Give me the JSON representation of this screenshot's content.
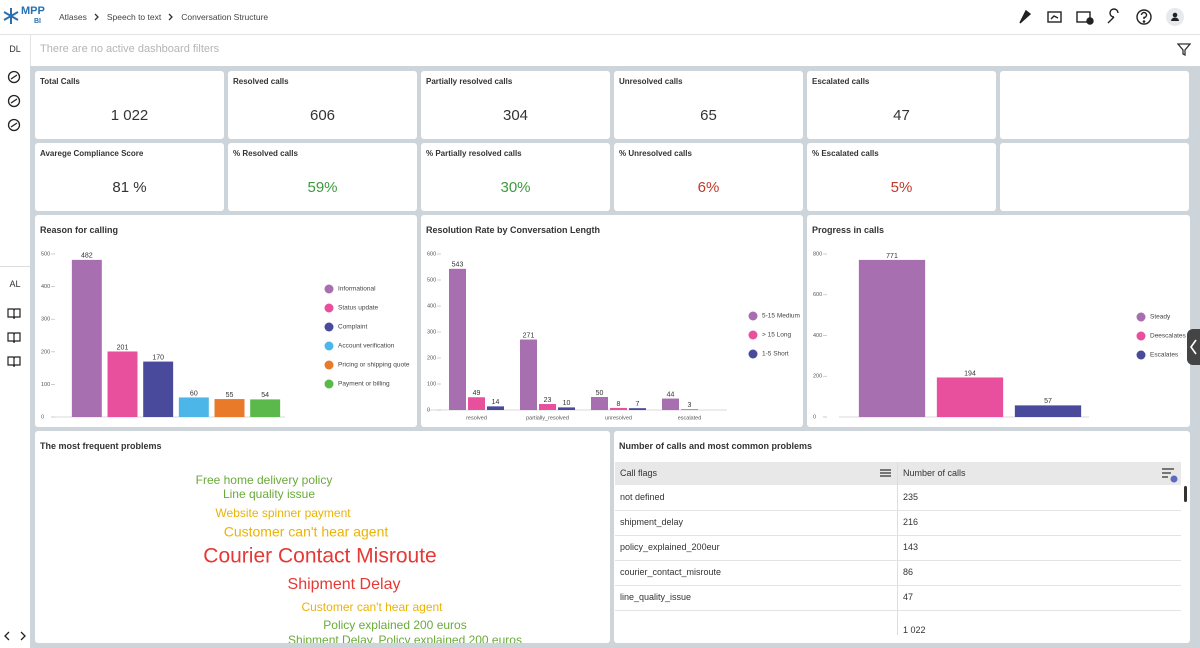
{
  "header": {
    "logo": "MPP",
    "logo_sub": "BI",
    "breadcrumbs": [
      "Atlases",
      "Speech to text",
      "Conversation Structure"
    ]
  },
  "sidebar": {
    "top_label": "DL",
    "bottom_label": "AL"
  },
  "filter_bar": {
    "text": "There are no active dashboard filters"
  },
  "kpis": [
    {
      "title": "Total Calls",
      "value": "1 022",
      "color": "#333333"
    },
    {
      "title": "Resolved calls",
      "value": "606",
      "color": "#333333"
    },
    {
      "title": "Partially resolved calls",
      "value": "304",
      "color": "#333333"
    },
    {
      "title": "Unresolved calls",
      "value": "65",
      "color": "#333333"
    },
    {
      "title": "Escalated calls",
      "value": "47",
      "color": "#333333"
    },
    {
      "title": "Avarege Compliance Score",
      "value": "81 %",
      "color": "#333333"
    },
    {
      "title": "% Resolved calls",
      "value": "59%",
      "color": "#3d9a3d"
    },
    {
      "title": "% Partially resolved calls",
      "value": "30%",
      "color": "#3d9a3d"
    },
    {
      "title": "% Unresolved calls",
      "value": "6%",
      "color": "#c0392b"
    },
    {
      "title": "% Escalated calls",
      "value": "5%",
      "color": "#c0392b"
    }
  ],
  "chart_data": [
    {
      "type": "bar",
      "title": "Reason for calling",
      "categories": [
        "Informational",
        "Status update",
        "Complaint",
        "Account verification",
        "Pricing or shipping quote",
        "Payment or billing"
      ],
      "values": [
        482,
        201,
        170,
        60,
        55,
        54
      ],
      "colors": [
        "#a86fb0",
        "#e84f9c",
        "#4a4a9c",
        "#4db6e8",
        "#e87a2a",
        "#5bb84a"
      ],
      "ylim": [
        0,
        500
      ],
      "yticks": [
        0,
        100,
        200,
        300,
        400,
        500
      ],
      "legend": "right"
    },
    {
      "type": "grouped_bar",
      "title": "Resolution Rate by Conversation Length",
      "categories": [
        "resolved",
        "partially_resolved",
        "unresolved",
        "escalated"
      ],
      "series": [
        {
          "name": "5-15 Medium",
          "color": "#a86fb0",
          "values": [
            543,
            271,
            50,
            44
          ]
        },
        {
          "name": "> 15 Long",
          "color": "#e84f9c",
          "values": [
            49,
            23,
            8,
            3
          ]
        },
        {
          "name": "1-5 Short",
          "color": "#4a4a9c",
          "values": [
            14,
            10,
            7,
            null
          ]
        }
      ],
      "ylim": [
        0,
        600
      ],
      "yticks": [
        0,
        100,
        200,
        300,
        400,
        500,
        600
      ],
      "legend": "right"
    },
    {
      "type": "bar",
      "title": "Progress in calls",
      "categories": [
        "Steady",
        "Deescalates",
        "Escalates"
      ],
      "values": [
        771,
        194,
        57
      ],
      "colors": [
        "#a86fb0",
        "#e84f9c",
        "#4a4a9c"
      ],
      "ylim": [
        0,
        800
      ],
      "yticks": [
        0,
        200,
        400,
        600,
        800
      ],
      "legend": "right"
    }
  ],
  "word_cloud": {
    "title": "The most frequent problems",
    "words": [
      {
        "text": "Free home delivery policy",
        "color": "#6aaa3a"
      },
      {
        "text": "Line quality issue",
        "color": "#6aaa3a"
      },
      {
        "text": "Website spinner payment",
        "color": "#eab308"
      },
      {
        "text": "Customer can't hear agent",
        "color": "#eab308"
      },
      {
        "text": "Courier Contact Misroute",
        "color": "#e53935"
      },
      {
        "text": "Shipment Delay",
        "color": "#e53935"
      },
      {
        "text": "Customer can't hear agent",
        "color": "#eab308"
      },
      {
        "text": "Policy explained 200 euros",
        "color": "#6aaa3a"
      },
      {
        "text": "Shipment Delay, Policy explained 200 euros",
        "color": "#6aaa3a"
      }
    ]
  },
  "table": {
    "title": "Number of calls and most common problems",
    "columns": [
      "Call flags",
      "Number of calls"
    ],
    "rows": [
      [
        "not defined",
        235
      ],
      [
        "shipment_delay",
        216
      ],
      [
        "policy_explained_200eur",
        143
      ],
      [
        "courier_contact_misroute",
        86
      ],
      [
        "line_quality_issue",
        47
      ]
    ],
    "total": "1 022"
  }
}
